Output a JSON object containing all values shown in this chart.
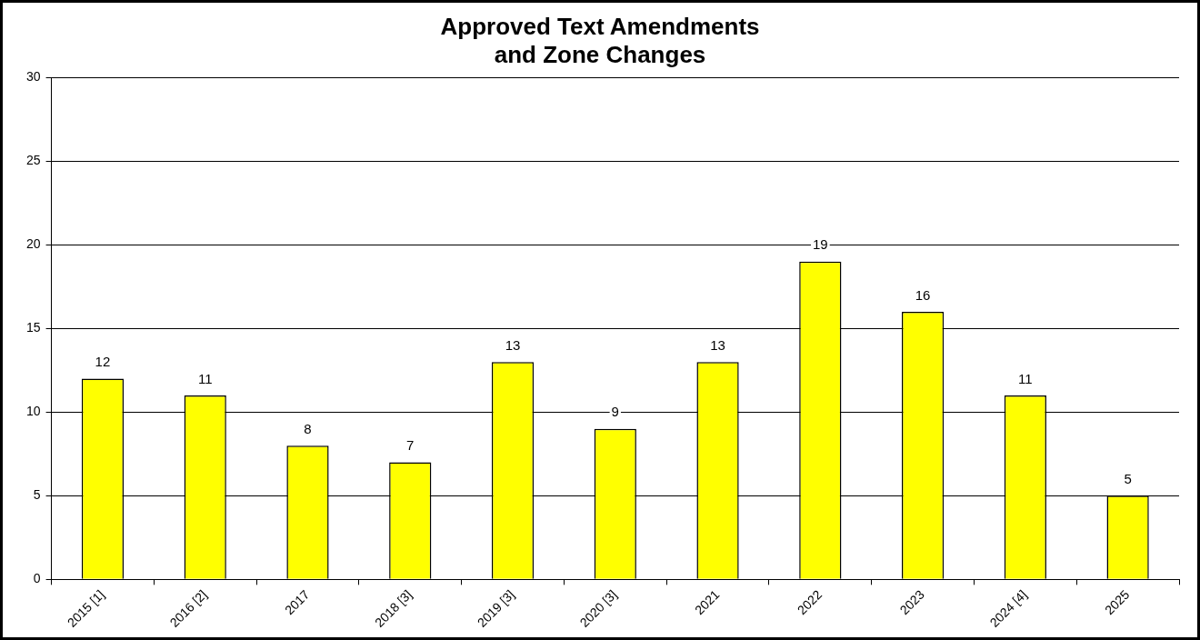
{
  "chart_data": {
    "type": "bar",
    "title": "Approved Text Amendments\nand Zone Changes",
    "categories": [
      "2015 [1]",
      "2016 [2]",
      "2017",
      "2018 [3]",
      "2019 [3]",
      "2020 [3]",
      "2021",
      "2022",
      "2023",
      "2024 [4]",
      "2025"
    ],
    "values": [
      12,
      11,
      8,
      7,
      13,
      9,
      13,
      19,
      16,
      11,
      5
    ],
    "color": "#ffff00",
    "ylim": [
      0,
      30
    ],
    "yticks": [
      0,
      5,
      10,
      15,
      20,
      25,
      30
    ],
    "grid": "y",
    "data_labels": true
  }
}
